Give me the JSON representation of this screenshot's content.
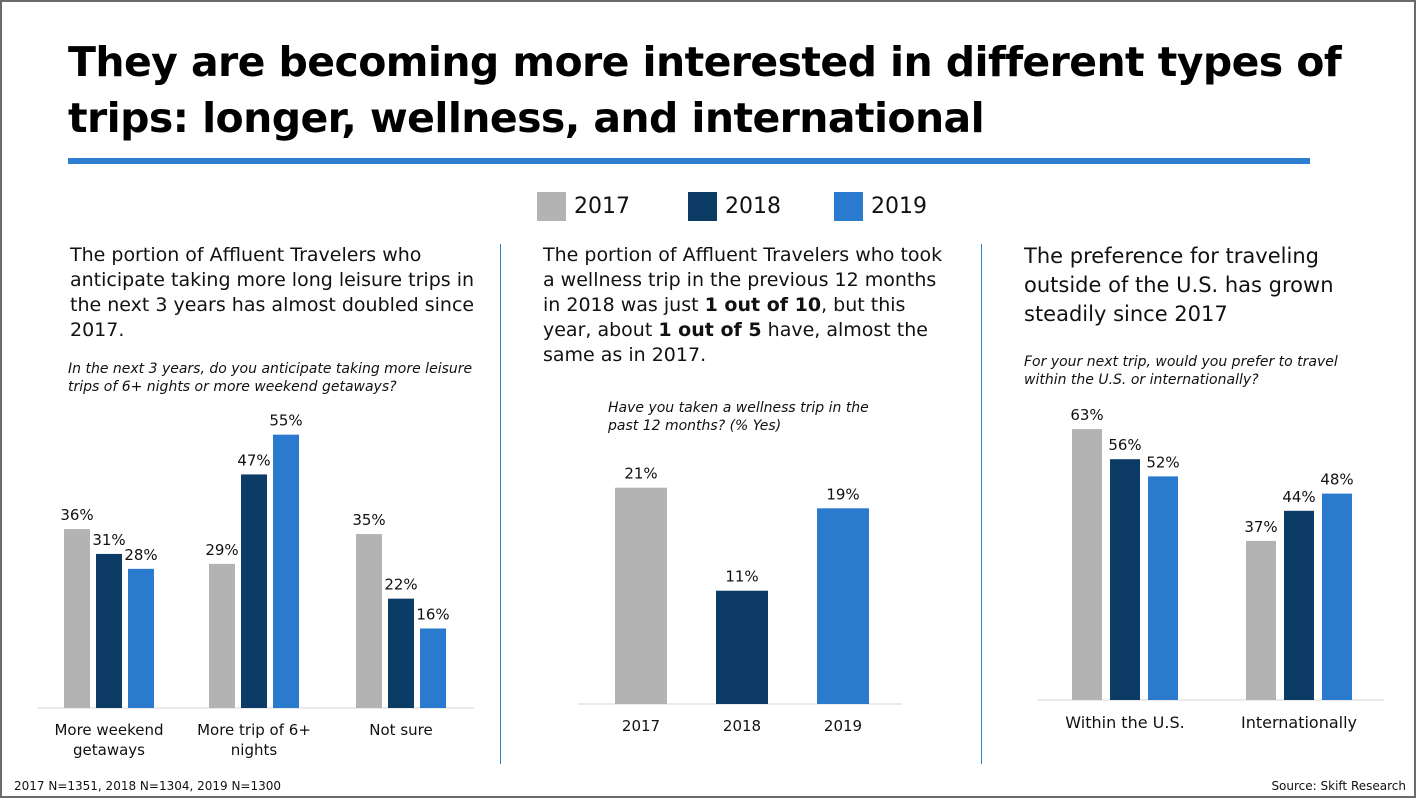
{
  "title": "They are becoming more interested in different types of trips: longer, wellness, and international",
  "colors": {
    "y2017": "#b3b3b3",
    "y2018": "#0c3c66",
    "y2019": "#2a7acd",
    "rule": "#2f7fd0"
  },
  "legend": [
    {
      "label": "2017",
      "color": "#b3b3b3"
    },
    {
      "label": "2018",
      "color": "#0c3c66"
    },
    {
      "label": "2019",
      "color": "#2a7acd"
    }
  ],
  "panels": [
    {
      "description": {
        "before": "The portion of Affluent Travelers who anticipate taking more long leisure trips in the next 3 years has almost doubled since 2017."
      },
      "question": "In the next 3 years, do you anticipate taking more leisure trips of 6+ nights or more weekend getaways?"
    },
    {
      "description": {
        "before": "The portion of Affluent Travelers who took a wellness trip in the previous 12 months in 2018 was just ",
        "bold1": "1 out of 10",
        "middle": ", but this year, about ",
        "bold2": "1 out of 5",
        "after": " have, almost the same as in 2017."
      },
      "question": "Have you taken a wellness trip in the past 12 months? (% Yes)"
    },
    {
      "description": {
        "before": "The preference for traveling outside of the U.S. has grown steadily since 2017"
      },
      "question": "For your next trip, would you prefer to travel within the U.S. or internationally?"
    }
  ],
  "chart_data": [
    {
      "type": "bar",
      "categories": [
        "More weekend getaways",
        "More trip of 6+ nights",
        "Not sure"
      ],
      "series": [
        {
          "name": "2017",
          "values": [
            36,
            29,
            35
          ],
          "labels": [
            "36%",
            "29%",
            "35%"
          ]
        },
        {
          "name": "2018",
          "values": [
            31,
            47,
            22
          ],
          "labels": [
            "31%",
            "47%",
            "22%"
          ]
        },
        {
          "name": "2019",
          "values": [
            28,
            55,
            16
          ],
          "labels": [
            "28%",
            "55%",
            "16%"
          ]
        }
      ],
      "ylim": [
        0,
        60
      ],
      "unit": "%"
    },
    {
      "type": "bar",
      "categories": [
        "2017",
        "2018",
        "2019"
      ],
      "values": [
        21,
        11,
        19
      ],
      "labels": [
        "21%",
        "11%",
        "19%"
      ],
      "ylim": [
        0,
        25
      ],
      "unit": "%"
    },
    {
      "type": "bar",
      "categories": [
        "Within the U.S.",
        "Internationally"
      ],
      "series": [
        {
          "name": "2017",
          "values": [
            63,
            37
          ],
          "labels": [
            "63%",
            "37%"
          ]
        },
        {
          "name": "2018",
          "values": [
            56,
            44
          ],
          "labels": [
            "56%",
            "44%"
          ]
        },
        {
          "name": "2019",
          "values": [
            52,
            48
          ],
          "labels": [
            "52%",
            "48%"
          ]
        }
      ],
      "ylim": [
        0,
        70
      ],
      "unit": "%"
    }
  ],
  "footer": {
    "left": "2017 N=1351, 2018 N=1304, 2019 N=1300",
    "right": "Source: Skift Research"
  }
}
